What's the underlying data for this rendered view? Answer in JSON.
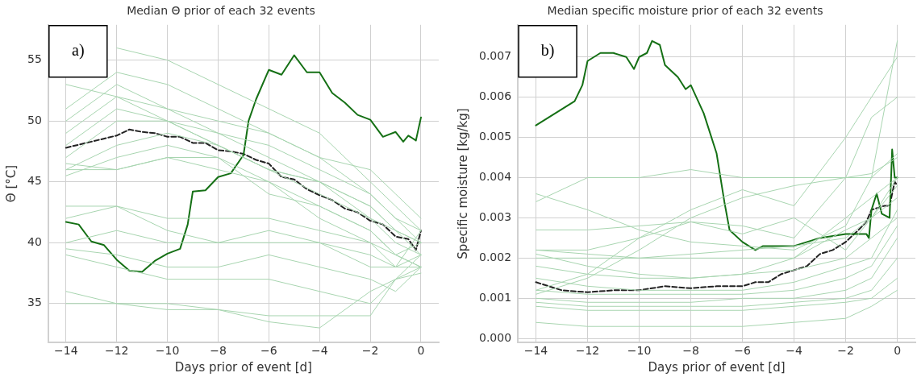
{
  "chart_data": [
    {
      "type": "line",
      "title": "Median Θ prior of each 32 events",
      "xlabel": "Days prior of event [d]",
      "ylabel": "Θ [°C]",
      "annotations": [
        "a)"
      ],
      "grid": true,
      "legend": false,
      "marker": "none",
      "xlim": [
        -14.7,
        0.7
      ],
      "xticks": [
        {
          "value": -14,
          "label": "−14"
        },
        {
          "value": -12,
          "label": "−12"
        },
        {
          "value": -10,
          "label": "−10"
        },
        {
          "value": -8,
          "label": "−8"
        },
        {
          "value": -6,
          "label": "−6"
        },
        {
          "value": -4,
          "label": "−4"
        },
        {
          "value": -2,
          "label": "−2"
        },
        0
      ],
      "ylim": [
        31.8,
        57.9
      ],
      "yticks": [
        35,
        40,
        45,
        50,
        55
      ],
      "x": [
        -14,
        -12,
        -10,
        -8,
        -6,
        -4,
        -2,
        -1,
        0
      ],
      "series": [
        {
          "color": "#a8d5b0",
          "values": [
            null,
            56,
            55,
            53,
            51,
            49,
            45,
            43,
            41
          ]
        },
        {
          "color": "#a8d5b0",
          "values": [
            51,
            54,
            53,
            51,
            49,
            47,
            44,
            42,
            40
          ]
        },
        {
          "color": "#a8d5b0",
          "values": [
            50,
            53,
            51,
            50,
            49,
            47,
            46,
            44,
            42
          ]
        },
        {
          "color": "#a8d5b0",
          "values": [
            49,
            52,
            51,
            49,
            48,
            46,
            44,
            42,
            41
          ]
        },
        {
          "color": "#a8d5b0",
          "values": [
            48,
            51,
            50,
            49,
            47,
            45,
            43,
            41,
            40
          ]
        },
        {
          "color": "#a8d5b0",
          "values": [
            47,
            50,
            50,
            48,
            46,
            45,
            42,
            41,
            39
          ]
        },
        {
          "color": "#a8d5b0",
          "values": [
            46,
            48,
            49,
            48,
            46,
            44,
            42,
            40,
            39
          ]
        },
        {
          "color": "#a8d5b0",
          "values": [
            45.5,
            47,
            48,
            47,
            45,
            43,
            41,
            39,
            38
          ]
        },
        {
          "color": "#a8d5b0",
          "values": [
            46.5,
            46,
            47,
            46,
            45,
            42,
            40,
            38,
            38
          ]
        },
        {
          "color": "#a8d5b0",
          "values": [
            46,
            46,
            47,
            47,
            44,
            43,
            41,
            39,
            38
          ]
        },
        {
          "color": "#a8d5b0",
          "values": [
            53,
            52,
            50,
            48,
            46,
            45,
            43,
            41,
            40
          ]
        },
        {
          "color": "#a8d5b0",
          "values": [
            43,
            43,
            42,
            42,
            42,
            41,
            40,
            39,
            40
          ]
        },
        {
          "color": "#a8d5b0",
          "values": [
            42,
            43,
            41,
            40,
            41,
            40,
            39,
            38,
            41
          ]
        },
        {
          "color": "#a8d5b0",
          "values": [
            40,
            41,
            40,
            40,
            40,
            40,
            38,
            38,
            39
          ]
        },
        {
          "color": "#a8d5b0",
          "values": [
            39.5,
            39,
            38,
            38,
            39,
            38,
            37,
            36,
            38
          ]
        },
        {
          "color": "#a8d5b0",
          "values": [
            39,
            38,
            37,
            37,
            37,
            36,
            35,
            37,
            37.5
          ]
        },
        {
          "color": "#a8d5b0",
          "values": [
            36,
            35,
            35,
            34.5,
            33.5,
            33,
            36,
            37,
            38
          ]
        },
        {
          "color": "#a8d5b0",
          "values": [
            35,
            35,
            34.5,
            34.5,
            34,
            34,
            34,
            37,
            39
          ]
        },
        {
          "color": "#157015",
          "x": [
            -14,
            -13.5,
            -13,
            -12.5,
            -12,
            -11.5,
            -11,
            -10.5,
            -10,
            -9.5,
            -9.2,
            -9,
            -8.5,
            -8,
            -7.5,
            -7,
            -6.8,
            -6.5,
            -6,
            -5.5,
            -5,
            -4.5,
            -4,
            -3.5,
            -3,
            -2.5,
            -2,
            -1.5,
            -1,
            -0.7,
            -0.5,
            -0.2,
            0
          ],
          "values": [
            41.7,
            41.5,
            40.1,
            39.8,
            38.6,
            37.7,
            37.6,
            38.5,
            39.1,
            39.5,
            41.5,
            44.2,
            44.3,
            45.4,
            45.7,
            47.2,
            50,
            51.8,
            54.2,
            53.8,
            55.4,
            54,
            54,
            52.3,
            51.5,
            50.5,
            50.1,
            48.7,
            49.1,
            48.3,
            48.8,
            48.4,
            50.3
          ]
        },
        {
          "color": "#222222",
          "line_style": "dashed",
          "x": [
            -14,
            -13,
            -12,
            -11.5,
            -11,
            -10.5,
            -10,
            -9.5,
            -9,
            -8.5,
            -8,
            -7.5,
            -7,
            -6.5,
            -6,
            -5.5,
            -5,
            -4.5,
            -4,
            -3.5,
            -3,
            -2.5,
            -2,
            -1.5,
            -1,
            -0.5,
            -0.2,
            0
          ],
          "values": [
            47.8,
            48.3,
            48.8,
            49.3,
            49.1,
            49,
            48.7,
            48.7,
            48.2,
            48.2,
            47.6,
            47.5,
            47.3,
            46.8,
            46.5,
            45.4,
            45.2,
            44.4,
            43.9,
            43.5,
            42.8,
            42.5,
            41.8,
            41.5,
            40.5,
            40.3,
            39.4,
            41
          ]
        }
      ]
    },
    {
      "type": "line",
      "title": "Median specific moisture prior of each 32 events",
      "xlabel": "Days prior of event [d]",
      "ylabel": "Specific moisture [kg/kg]",
      "annotations": [
        "b)"
      ],
      "grid": true,
      "legend": false,
      "marker": "none",
      "xlim": [
        -14.7,
        0.7
      ],
      "xticks": [
        {
          "value": -14,
          "label": "−14"
        },
        {
          "value": -12,
          "label": "−12"
        },
        {
          "value": -10,
          "label": "−10"
        },
        {
          "value": -8,
          "label": "−8"
        },
        {
          "value": -6,
          "label": "−6"
        },
        {
          "value": -4,
          "label": "−4"
        },
        {
          "value": -2,
          "label": "−2"
        },
        0
      ],
      "ylim": [
        -0.0001,
        0.0078
      ],
      "yticks": [
        {
          "value": 0,
          "label": "0.000"
        },
        {
          "value": 0.001,
          "label": "0.001"
        },
        {
          "value": 0.002,
          "label": "0.002"
        },
        {
          "value": 0.003,
          "label": "0.003"
        },
        {
          "value": 0.004,
          "label": "0.004"
        },
        {
          "value": 0.005,
          "label": "0.005"
        },
        {
          "value": 0.006,
          "label": "0.006"
        },
        {
          "value": 0.007,
          "label": "0.007"
        }
      ],
      "x": [
        -14,
        -12,
        -10,
        -8,
        -6,
        -4,
        -2,
        -1,
        0
      ],
      "series": [
        {
          "color": "#a8d5b0",
          "values": [
            0.0034,
            0.004,
            0.004,
            0.0042,
            0.004,
            0.004,
            0.004,
            0.004,
            0.0046
          ]
        },
        {
          "color": "#a8d5b0",
          "values": [
            0.0036,
            0.0032,
            0.0027,
            0.0024,
            0.0023,
            0.0022,
            0.0028,
            0.004,
            0.0074
          ]
        },
        {
          "color": "#a8d5b0",
          "values": [
            0.0027,
            0.0027,
            0.0028,
            0.0029,
            0.0028,
            0.0025,
            0.004,
            0.0055,
            0.006
          ]
        },
        {
          "color": "#a8d5b0",
          "values": [
            0.0022,
            0.0022,
            0.0025,
            0.0032,
            0.0037,
            0.0033,
            0.005,
            0.006,
            0.007
          ]
        },
        {
          "color": "#a8d5b0",
          "values": [
            0.0022,
            0.0021,
            0.002,
            0.0021,
            0.0022,
            0.0023,
            0.0025,
            0.003,
            0.004
          ]
        },
        {
          "color": "#a8d5b0",
          "values": [
            0.0021,
            0.0018,
            0.0016,
            0.0015,
            0.0016,
            0.002,
            0.003,
            0.0035,
            0.004
          ]
        },
        {
          "color": "#a8d5b0",
          "values": [
            0.002,
            0.002,
            0.002,
            0.002,
            0.002,
            0.002,
            0.0027,
            0.003,
            0.0035
          ]
        },
        {
          "color": "#a8d5b0",
          "values": [
            0.0018,
            0.0016,
            0.0015,
            0.0015,
            0.0016,
            0.0017,
            0.002,
            0.0025,
            0.003
          ]
        },
        {
          "color": "#a8d5b0",
          "values": [
            0.0015,
            0.0013,
            0.0012,
            0.0012,
            0.0012,
            0.0014,
            0.0018,
            0.002,
            0.0032
          ]
        },
        {
          "color": "#a8d5b0",
          "values": [
            0.0012,
            0.0011,
            0.0011,
            0.0011,
            0.0011,
            0.0012,
            0.0015,
            0.0018,
            0.0028
          ]
        },
        {
          "color": "#a8d5b0",
          "values": [
            0.001,
            0.0009,
            0.0009,
            0.0009,
            0.001,
            0.001,
            0.0012,
            0.0015,
            0.0025
          ]
        },
        {
          "color": "#a8d5b0",
          "values": [
            0.0009,
            0.0008,
            0.0008,
            0.0008,
            0.0008,
            0.0009,
            0.001,
            0.0012,
            0.002
          ]
        },
        {
          "color": "#a8d5b0",
          "values": [
            0.0008,
            0.0007,
            0.0007,
            0.0007,
            0.0007,
            0.0008,
            0.0009,
            0.001,
            0.0015
          ]
        },
        {
          "color": "#a8d5b0",
          "values": [
            0.0004,
            0.0003,
            0.0003,
            0.0003,
            0.0003,
            0.0004,
            0.0005,
            0.0008,
            0.0012
          ]
        },
        {
          "color": "#a8d5b0",
          "values": [
            0.0011,
            0.0015,
            0.0022,
            0.003,
            0.0035,
            0.0038,
            0.004,
            0.0041,
            0.0045
          ]
        },
        {
          "color": "#a8d5b0",
          "values": [
            0.0012,
            0.0016,
            0.0025,
            0.0029,
            0.0026,
            0.003,
            0.0022,
            0.003,
            0.0038
          ]
        },
        {
          "color": "#157015",
          "x": [
            -14,
            -13.5,
            -13,
            -12.5,
            -12.2,
            -12,
            -11.5,
            -11,
            -10.5,
            -10.2,
            -10,
            -9.7,
            -9.5,
            -9.2,
            -9,
            -8.5,
            -8.2,
            -8,
            -7.5,
            -7,
            -6.7,
            -6.5,
            -6,
            -5.5,
            -5.2,
            -5,
            -4,
            -3,
            -2,
            -1.2,
            -1.1,
            -1,
            -0.8,
            -0.6,
            -0.3,
            -0.2,
            -0.1,
            0
          ],
          "values": [
            0.0053,
            0.0055,
            0.0057,
            0.0059,
            0.0063,
            0.0069,
            0.0071,
            0.0071,
            0.007,
            0.0067,
            0.007,
            0.0071,
            0.0074,
            0.0073,
            0.0068,
            0.0065,
            0.0062,
            0.0063,
            0.0056,
            0.0046,
            0.0034,
            0.0027,
            0.0024,
            0.0022,
            0.0023,
            0.0023,
            0.0023,
            0.0025,
            0.0026,
            0.0026,
            0.0025,
            0.0032,
            0.0036,
            0.0031,
            0.003,
            0.0047,
            0.004,
            0.004
          ]
        },
        {
          "color": "#222222",
          "line_style": "dashed",
          "x": [
            -14,
            -13,
            -12,
            -11,
            -10,
            -9,
            -8,
            -7,
            -6,
            -5.5,
            -5,
            -4.5,
            -4,
            -3.5,
            -3,
            -2.5,
            -2,
            -1.5,
            -1.2,
            -1,
            -0.5,
            -0.3,
            -0.1,
            0
          ],
          "values": [
            0.0014,
            0.0012,
            0.00115,
            0.0012,
            0.0012,
            0.0013,
            0.00125,
            0.0013,
            0.0013,
            0.0014,
            0.0014,
            0.0016,
            0.0017,
            0.0018,
            0.0021,
            0.0022,
            0.0024,
            0.0027,
            0.0029,
            0.0032,
            0.0033,
            0.0033,
            0.0039,
            0.0038
          ]
        }
      ]
    }
  ]
}
